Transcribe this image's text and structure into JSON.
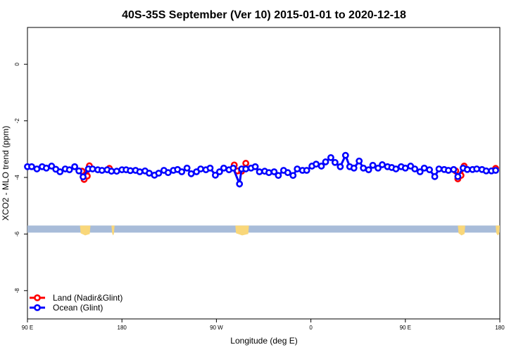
{
  "chart_data": {
    "type": "line",
    "title": "40S-35S September (Ver 10)   2015-01-01 to 2020-12-18",
    "xlabel": "Longitude (deg E)",
    "ylabel": "XCO2 - MLO trend (ppm)",
    "x_ticks": [
      {
        "value": 90,
        "label": "90 E"
      },
      {
        "value": 180,
        "label": "180"
      },
      {
        "value": 270,
        "label": "90 W"
      },
      {
        "value": 360,
        "label": "0"
      },
      {
        "value": 450,
        "label": "90 E"
      },
      {
        "value": 540,
        "label": "180"
      }
    ],
    "y_ticks": [
      0,
      -2,
      -4,
      -6,
      -8
    ],
    "xlim": [
      90,
      540
    ],
    "ylim": [
      -9.0,
      1.3
    ],
    "grid": false,
    "legend_position": "bottom-left",
    "land_strip": {
      "y_top": -5.7,
      "y_bottom": -5.95,
      "color": "#a8bcd9",
      "land_color": "#f9d77a",
      "land_ranges": [
        [
          140,
          150
        ],
        [
          170,
          173
        ],
        [
          288,
          301
        ],
        [
          500,
          507
        ],
        [
          536,
          540
        ]
      ]
    },
    "series": [
      {
        "name": "Land (Nadir&Glint)",
        "color": "#ff0000",
        "points": [
          [
            142,
            -3.78
          ],
          [
            144,
            -4.07
          ],
          [
            147,
            -3.95
          ],
          [
            149,
            -3.59
          ],
          [
            168,
            -3.68
          ],
          [
            287,
            -3.56
          ],
          [
            290,
            -3.77
          ],
          [
            294,
            -3.78
          ],
          [
            298,
            -3.5
          ],
          [
            498,
            -3.77
          ],
          [
            500,
            -4.05
          ],
          [
            503,
            -3.93
          ],
          [
            506,
            -3.6
          ],
          [
            536,
            -3.68
          ]
        ]
      },
      {
        "name": "Ocean (Glint)",
        "color": "#0000ff",
        "points": [
          [
            90,
            -3.62
          ],
          [
            94,
            -3.62
          ],
          [
            99,
            -3.7
          ],
          [
            104,
            -3.62
          ],
          [
            108,
            -3.67
          ],
          [
            113,
            -3.6
          ],
          [
            117,
            -3.71
          ],
          [
            121,
            -3.8
          ],
          [
            126,
            -3.7
          ],
          [
            130,
            -3.73
          ],
          [
            135,
            -3.62
          ],
          [
            139,
            -3.77
          ],
          [
            143,
            -3.98
          ],
          [
            148,
            -3.7
          ],
          [
            152,
            -3.7
          ],
          [
            157,
            -3.73
          ],
          [
            161,
            -3.75
          ],
          [
            166,
            -3.73
          ],
          [
            170,
            -3.78
          ],
          [
            175,
            -3.78
          ],
          [
            180,
            -3.73
          ],
          [
            184,
            -3.73
          ],
          [
            188,
            -3.76
          ],
          [
            193,
            -3.75
          ],
          [
            197,
            -3.8
          ],
          [
            202,
            -3.77
          ],
          [
            206,
            -3.85
          ],
          [
            211,
            -3.92
          ],
          [
            215,
            -3.85
          ],
          [
            220,
            -3.75
          ],
          [
            224,
            -3.83
          ],
          [
            229,
            -3.75
          ],
          [
            233,
            -3.72
          ],
          [
            237,
            -3.8
          ],
          [
            242,
            -3.67
          ],
          [
            246,
            -3.87
          ],
          [
            251,
            -3.8
          ],
          [
            255,
            -3.7
          ],
          [
            260,
            -3.73
          ],
          [
            264,
            -3.67
          ],
          [
            269,
            -3.92
          ],
          [
            273,
            -3.8
          ],
          [
            277,
            -3.67
          ],
          [
            282,
            -3.73
          ],
          [
            286,
            -3.67
          ],
          [
            292,
            -4.23
          ],
          [
            294,
            -3.7
          ],
          [
            298,
            -3.7
          ],
          [
            303,
            -3.67
          ],
          [
            307,
            -3.62
          ],
          [
            311,
            -3.8
          ],
          [
            316,
            -3.78
          ],
          [
            320,
            -3.83
          ],
          [
            325,
            -3.8
          ],
          [
            329,
            -3.93
          ],
          [
            334,
            -3.75
          ],
          [
            338,
            -3.83
          ],
          [
            343,
            -3.93
          ],
          [
            347,
            -3.7
          ],
          [
            352,
            -3.75
          ],
          [
            356,
            -3.75
          ],
          [
            361,
            -3.6
          ],
          [
            365,
            -3.53
          ],
          [
            370,
            -3.6
          ],
          [
            374,
            -3.45
          ],
          [
            379,
            -3.3
          ],
          [
            383,
            -3.47
          ],
          [
            388,
            -3.62
          ],
          [
            393,
            -3.22
          ],
          [
            397,
            -3.62
          ],
          [
            401,
            -3.67
          ],
          [
            406,
            -3.42
          ],
          [
            410,
            -3.67
          ],
          [
            415,
            -3.73
          ],
          [
            419,
            -3.57
          ],
          [
            424,
            -3.67
          ],
          [
            428,
            -3.55
          ],
          [
            433,
            -3.62
          ],
          [
            437,
            -3.65
          ],
          [
            441,
            -3.7
          ],
          [
            446,
            -3.62
          ],
          [
            450,
            -3.67
          ],
          [
            455,
            -3.6
          ],
          [
            459,
            -3.7
          ],
          [
            464,
            -3.8
          ],
          [
            468,
            -3.67
          ],
          [
            473,
            -3.73
          ],
          [
            478,
            -3.97
          ],
          [
            482,
            -3.7
          ],
          [
            487,
            -3.72
          ],
          [
            491,
            -3.75
          ],
          [
            496,
            -3.72
          ],
          [
            500,
            -3.97
          ],
          [
            505,
            -3.67
          ],
          [
            509,
            -3.72
          ],
          [
            514,
            -3.72
          ],
          [
            518,
            -3.7
          ],
          [
            523,
            -3.72
          ],
          [
            527,
            -3.77
          ],
          [
            532,
            -3.77
          ],
          [
            536,
            -3.75
          ]
        ]
      }
    ]
  }
}
